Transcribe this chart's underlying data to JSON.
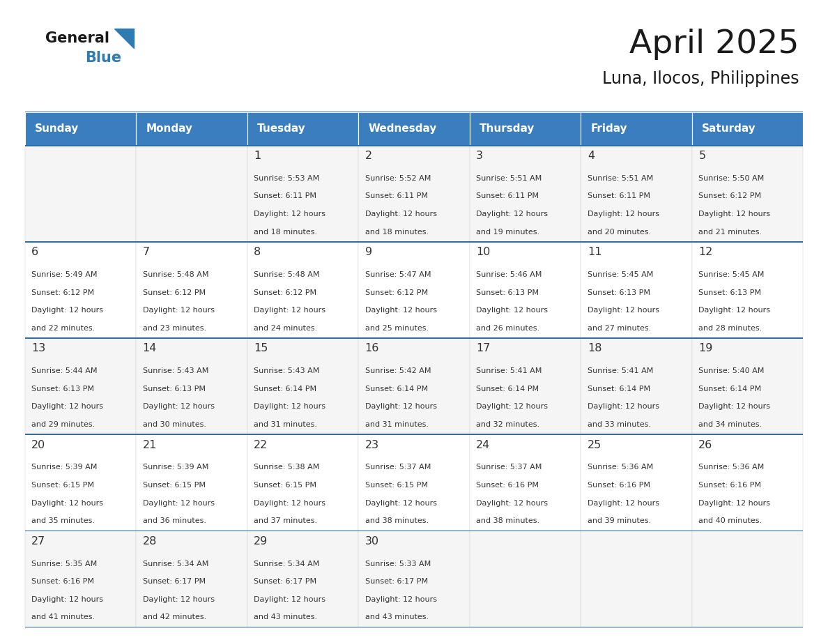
{
  "title": "April 2025",
  "subtitle": "Luna, Ilocos, Philippines",
  "header_color": "#3a7ebf",
  "header_text_color": "#FFFFFF",
  "day_names": [
    "Sunday",
    "Monday",
    "Tuesday",
    "Wednesday",
    "Thursday",
    "Friday",
    "Saturday"
  ],
  "background_color": "#FFFFFF",
  "row_bg_0": "#F5F5F5",
  "row_bg_1": "#FFFFFF",
  "border_color": "#2E6DA4",
  "text_color": "#333333",
  "logo_black": "#1a1a1a",
  "logo_blue": "#2E7BB4",
  "days": [
    {
      "day": 1,
      "col": 2,
      "row": 0,
      "sunrise": "5:53 AM",
      "sunset": "6:11 PM",
      "daylight_min": "18"
    },
    {
      "day": 2,
      "col": 3,
      "row": 0,
      "sunrise": "5:52 AM",
      "sunset": "6:11 PM",
      "daylight_min": "18"
    },
    {
      "day": 3,
      "col": 4,
      "row": 0,
      "sunrise": "5:51 AM",
      "sunset": "6:11 PM",
      "daylight_min": "19"
    },
    {
      "day": 4,
      "col": 5,
      "row": 0,
      "sunrise": "5:51 AM",
      "sunset": "6:11 PM",
      "daylight_min": "20"
    },
    {
      "day": 5,
      "col": 6,
      "row": 0,
      "sunrise": "5:50 AM",
      "sunset": "6:12 PM",
      "daylight_min": "21"
    },
    {
      "day": 6,
      "col": 0,
      "row": 1,
      "sunrise": "5:49 AM",
      "sunset": "6:12 PM",
      "daylight_min": "22"
    },
    {
      "day": 7,
      "col": 1,
      "row": 1,
      "sunrise": "5:48 AM",
      "sunset": "6:12 PM",
      "daylight_min": "23"
    },
    {
      "day": 8,
      "col": 2,
      "row": 1,
      "sunrise": "5:48 AM",
      "sunset": "6:12 PM",
      "daylight_min": "24"
    },
    {
      "day": 9,
      "col": 3,
      "row": 1,
      "sunrise": "5:47 AM",
      "sunset": "6:12 PM",
      "daylight_min": "25"
    },
    {
      "day": 10,
      "col": 4,
      "row": 1,
      "sunrise": "5:46 AM",
      "sunset": "6:13 PM",
      "daylight_min": "26"
    },
    {
      "day": 11,
      "col": 5,
      "row": 1,
      "sunrise": "5:45 AM",
      "sunset": "6:13 PM",
      "daylight_min": "27"
    },
    {
      "day": 12,
      "col": 6,
      "row": 1,
      "sunrise": "5:45 AM",
      "sunset": "6:13 PM",
      "daylight_min": "28"
    },
    {
      "day": 13,
      "col": 0,
      "row": 2,
      "sunrise": "5:44 AM",
      "sunset": "6:13 PM",
      "daylight_min": "29"
    },
    {
      "day": 14,
      "col": 1,
      "row": 2,
      "sunrise": "5:43 AM",
      "sunset": "6:13 PM",
      "daylight_min": "30"
    },
    {
      "day": 15,
      "col": 2,
      "row": 2,
      "sunrise": "5:43 AM",
      "sunset": "6:14 PM",
      "daylight_min": "31"
    },
    {
      "day": 16,
      "col": 3,
      "row": 2,
      "sunrise": "5:42 AM",
      "sunset": "6:14 PM",
      "daylight_min": "31"
    },
    {
      "day": 17,
      "col": 4,
      "row": 2,
      "sunrise": "5:41 AM",
      "sunset": "6:14 PM",
      "daylight_min": "32"
    },
    {
      "day": 18,
      "col": 5,
      "row": 2,
      "sunrise": "5:41 AM",
      "sunset": "6:14 PM",
      "daylight_min": "33"
    },
    {
      "day": 19,
      "col": 6,
      "row": 2,
      "sunrise": "5:40 AM",
      "sunset": "6:14 PM",
      "daylight_min": "34"
    },
    {
      "day": 20,
      "col": 0,
      "row": 3,
      "sunrise": "5:39 AM",
      "sunset": "6:15 PM",
      "daylight_min": "35"
    },
    {
      "day": 21,
      "col": 1,
      "row": 3,
      "sunrise": "5:39 AM",
      "sunset": "6:15 PM",
      "daylight_min": "36"
    },
    {
      "day": 22,
      "col": 2,
      "row": 3,
      "sunrise": "5:38 AM",
      "sunset": "6:15 PM",
      "daylight_min": "37"
    },
    {
      "day": 23,
      "col": 3,
      "row": 3,
      "sunrise": "5:37 AM",
      "sunset": "6:15 PM",
      "daylight_min": "38"
    },
    {
      "day": 24,
      "col": 4,
      "row": 3,
      "sunrise": "5:37 AM",
      "sunset": "6:16 PM",
      "daylight_min": "38"
    },
    {
      "day": 25,
      "col": 5,
      "row": 3,
      "sunrise": "5:36 AM",
      "sunset": "6:16 PM",
      "daylight_min": "39"
    },
    {
      "day": 26,
      "col": 6,
      "row": 3,
      "sunrise": "5:36 AM",
      "sunset": "6:16 PM",
      "daylight_min": "40"
    },
    {
      "day": 27,
      "col": 0,
      "row": 4,
      "sunrise": "5:35 AM",
      "sunset": "6:16 PM",
      "daylight_min": "41"
    },
    {
      "day": 28,
      "col": 1,
      "row": 4,
      "sunrise": "5:34 AM",
      "sunset": "6:17 PM",
      "daylight_min": "42"
    },
    {
      "day": 29,
      "col": 2,
      "row": 4,
      "sunrise": "5:34 AM",
      "sunset": "6:17 PM",
      "daylight_min": "43"
    },
    {
      "day": 30,
      "col": 3,
      "row": 4,
      "sunrise": "5:33 AM",
      "sunset": "6:17 PM",
      "daylight_min": "43"
    }
  ]
}
